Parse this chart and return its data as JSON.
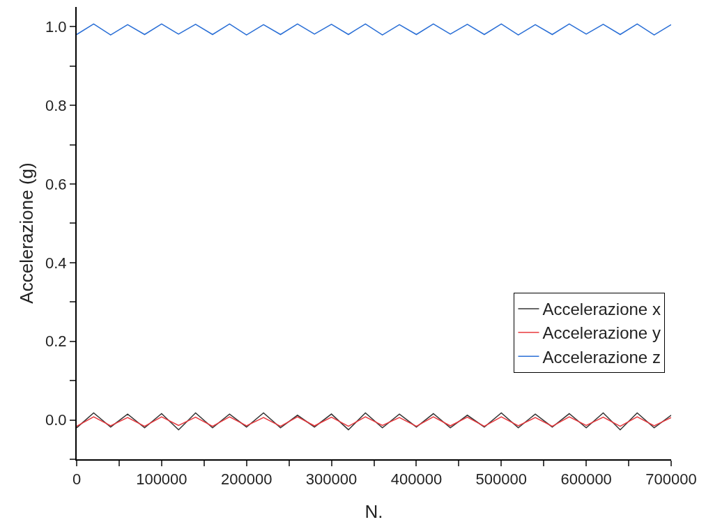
{
  "chart_data": {
    "type": "line",
    "xlabel": "N.",
    "ylabel": "Accelerazione (g)",
    "x": [
      0,
      20000,
      40000,
      60000,
      80000,
      100000,
      120000,
      140000,
      160000,
      180000,
      200000,
      220000,
      240000,
      260000,
      280000,
      300000,
      320000,
      340000,
      360000,
      380000,
      400000,
      420000,
      440000,
      460000,
      480000,
      500000,
      520000,
      540000,
      560000,
      580000,
      600000,
      620000,
      640000,
      660000,
      680000,
      700000
    ],
    "series": [
      {
        "name": "Accelerazione x",
        "color": "#333333",
        "values": [
          -0.02,
          0.018,
          -0.018,
          0.015,
          -0.02,
          0.016,
          -0.025,
          0.018,
          -0.02,
          0.015,
          -0.018,
          0.018,
          -0.02,
          0.012,
          -0.018,
          0.015,
          -0.025,
          0.018,
          -0.02,
          0.015,
          -0.018,
          0.016,
          -0.02,
          0.012,
          -0.018,
          0.018,
          -0.02,
          0.015,
          -0.018,
          0.016,
          -0.02,
          0.018,
          -0.025,
          0.018,
          -0.02,
          0.012
        ]
      },
      {
        "name": "Accelerazione y",
        "color": "#e8383d",
        "values": [
          -0.016,
          0.008,
          -0.015,
          0.006,
          -0.016,
          0.008,
          -0.014,
          0.007,
          -0.016,
          0.008,
          -0.015,
          0.006,
          -0.016,
          0.008,
          -0.015,
          0.007,
          -0.016,
          0.008,
          -0.014,
          0.006,
          -0.016,
          0.008,
          -0.015,
          0.007,
          -0.016,
          0.008,
          -0.015,
          0.006,
          -0.016,
          0.008,
          -0.014,
          0.007,
          -0.016,
          0.008,
          -0.015,
          0.006
        ]
      },
      {
        "name": "Accelerazione z",
        "color": "#2a6fd6",
        "values": [
          0.98,
          1.007,
          0.979,
          1.005,
          0.98,
          1.007,
          0.981,
          1.006,
          0.98,
          1.007,
          0.979,
          1.005,
          0.98,
          1.007,
          0.981,
          1.006,
          0.98,
          1.007,
          0.979,
          1.005,
          0.98,
          1.007,
          0.981,
          1.006,
          0.98,
          1.007,
          0.979,
          1.005,
          0.98,
          1.007,
          0.981,
          1.006,
          0.98,
          1.007,
          0.979,
          1.005
        ]
      }
    ],
    "xlim": [
      0,
      700000
    ],
    "xticks": [
      0,
      {
        "value": 50000,
        "label": null
      },
      100000,
      {
        "value": 150000,
        "label": null
      },
      200000,
      {
        "value": 250000,
        "label": null
      },
      300000,
      {
        "value": 350000,
        "label": null
      },
      400000,
      {
        "value": 450000,
        "label": null
      },
      500000,
      {
        "value": 550000,
        "label": null
      },
      600000,
      {
        "value": 650000,
        "label": null
      },
      700000
    ],
    "ylim": [
      -0.1,
      1.05
    ],
    "yticks": [
      {
        "value": -0.1,
        "label": null
      },
      {
        "value": 0,
        "label": "0.0"
      },
      {
        "value": 0.1,
        "label": null
      },
      0.2,
      {
        "value": 0.3,
        "label": null
      },
      0.4,
      {
        "value": 0.5,
        "label": null
      },
      0.6,
      {
        "value": 0.7,
        "label": null
      },
      0.8,
      {
        "value": 0.9,
        "label": null
      },
      {
        "value": 1,
        "label": "1.0"
      }
    ],
    "grid": false,
    "legend": "right",
    "marker": "none",
    "line_style": "solid"
  }
}
